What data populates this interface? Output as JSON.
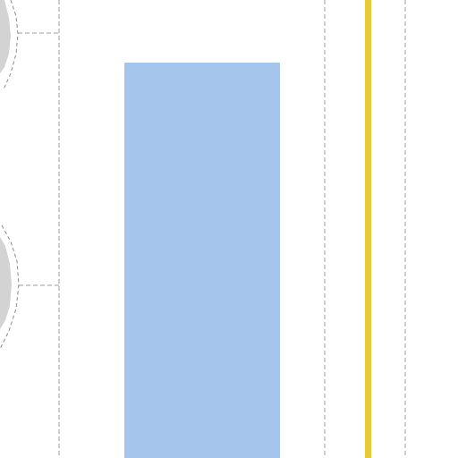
{
  "map": {
    "background_color": "#ffffff",
    "building_fill": "#a6c5ec",
    "road_line_color": "#e8c93a",
    "boundary_line_color": "#9e9e9e",
    "roundabout_fill": "#d3d3d3",
    "roundabout_outline_color": "#8a8a8a",
    "features": [
      {
        "kind": "building",
        "icon": "building-footprint"
      },
      {
        "kind": "road-centerline",
        "icon": "yellow-road-line"
      },
      {
        "kind": "roundabout",
        "icon": "roundabout-upper"
      },
      {
        "kind": "roundabout",
        "icon": "roundabout-lower"
      },
      {
        "kind": "boundary",
        "icon": "dashed-boundary-line"
      }
    ]
  }
}
